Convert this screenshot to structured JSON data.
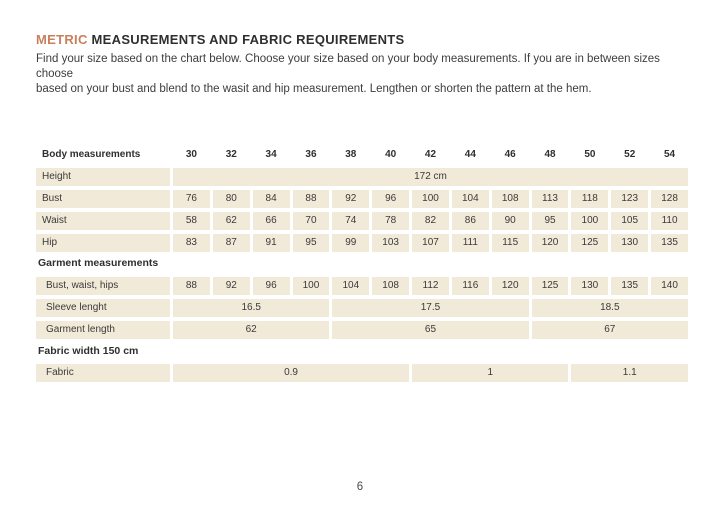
{
  "colors": {
    "accent": "#c8805c",
    "cell_background": "#f2ead8",
    "text": "#3a3a3a"
  },
  "title": {
    "highlight": "METRIC",
    "rest": " MEASUREMENTS AND FABRIC REQUIREMENTS"
  },
  "intro_line1": "Find your size based on the chart below. Choose your size based on your body measurements. If you are in between sizes choose",
  "intro_line2": "based on your bust and blend to the wasit and hip measurement. Lengthen or shorten the pattern at the hem.",
  "table": {
    "header_label": "Body measurements",
    "sizes": [
      "30",
      "32",
      "34",
      "36",
      "38",
      "40",
      "42",
      "44",
      "46",
      "48",
      "50",
      "52",
      "54"
    ],
    "height_row": {
      "label": "Height",
      "value": "172 cm"
    },
    "body_rows": [
      {
        "label": "Bust",
        "values": [
          "76",
          "80",
          "84",
          "88",
          "92",
          "96",
          "100",
          "104",
          "108",
          "113",
          "118",
          "123",
          "128"
        ]
      },
      {
        "label": "Waist",
        "values": [
          "58",
          "62",
          "66",
          "70",
          "74",
          "78",
          "82",
          "86",
          "90",
          "95",
          "100",
          "105",
          "110"
        ]
      },
      {
        "label": "Hip",
        "values": [
          "83",
          "87",
          "91",
          "95",
          "99",
          "103",
          "107",
          "111",
          "115",
          "120",
          "125",
          "130",
          "135"
        ]
      }
    ],
    "garment_section_label": "Garment measurements",
    "garment_row": {
      "label": "Bust, waist, hips",
      "values": [
        "88",
        "92",
        "96",
        "100",
        "104",
        "108",
        "112",
        "116",
        "120",
        "125",
        "130",
        "135",
        "140"
      ]
    },
    "sleeve_row": {
      "label": "Sleeve lenght",
      "groups": [
        {
          "value": "16.5",
          "span": 4
        },
        {
          "value": "17.5",
          "span": 5
        },
        {
          "value": "18.5",
          "span": 4
        }
      ]
    },
    "garment_length_row": {
      "label": "Garment length",
      "groups": [
        {
          "value": "62",
          "span": 4
        },
        {
          "value": "65",
          "span": 5
        },
        {
          "value": "67",
          "span": 4
        }
      ]
    },
    "fabric_section_label": "Fabric width 150 cm",
    "fabric_row": {
      "label": "Fabric",
      "groups": [
        {
          "value": "0.9",
          "span": 6
        },
        {
          "value": "1",
          "span": 4
        },
        {
          "value": "1.1",
          "span": 3
        }
      ]
    }
  },
  "footer": {
    "page_number": "6"
  }
}
